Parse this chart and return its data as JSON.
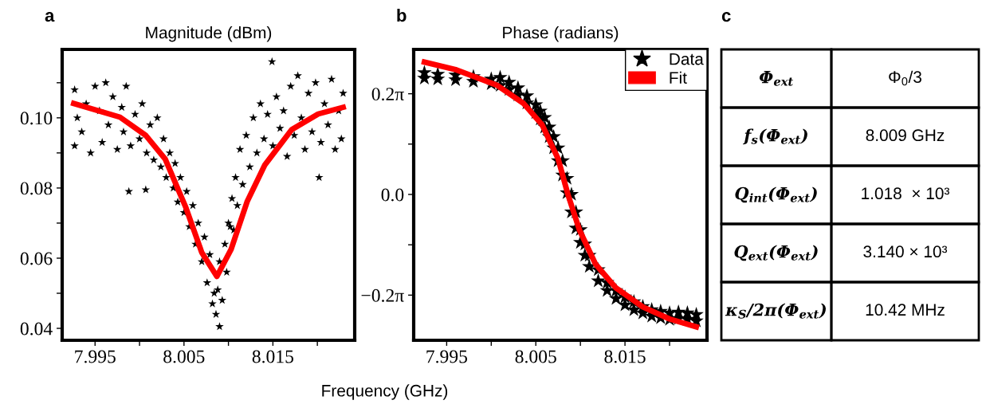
{
  "chart_data": [
    {
      "type": "scatter",
      "title": "Magnitude (dBm)",
      "xlabel": "Frequency (GHz)",
      "annotations": [
        "a"
      ],
      "xlim": [
        7.9913,
        8.0242
      ],
      "xticks": [
        7.995,
        {
          "value": 8.0,
          "label": null
        },
        8.005,
        {
          "value": 8.01,
          "label": null
        },
        8.015,
        {
          "value": 8.02,
          "label": null
        }
      ],
      "ylim": [
        0.0366,
        0.1195
      ],
      "yticks": [
        {
          "value": 0.04,
          "label": "0.04"
        },
        {
          "value": 0.05,
          "label": null
        },
        {
          "value": 0.06,
          "label": "0.06"
        },
        {
          "value": 0.07,
          "label": null
        },
        {
          "value": 0.08,
          "label": "0.08"
        },
        {
          "value": 0.09,
          "label": null
        },
        {
          "value": 0.1,
          "label": "0.10"
        },
        {
          "value": 0.11,
          "label": null
        }
      ],
      "grid": false,
      "legend": false,
      "series": [
        {
          "type": "scatter",
          "marker": "star",
          "color": "#000000",
          "x": [
            7.9927,
            7.9927,
            7.993,
            7.9935,
            7.994,
            7.9945,
            7.995,
            7.9955,
            7.9958,
            7.9962,
            7.9965,
            7.997,
            7.9975,
            7.998,
            7.9982,
            7.9985,
            7.9988,
            7.999,
            7.9995,
            8.0,
            8.0003,
            8.0007,
            8.0008,
            8.0012,
            8.0016,
            8.002,
            8.0024,
            8.0027,
            8.003,
            8.0034,
            8.0038,
            8.004,
            8.0043,
            8.0046,
            8.005,
            8.0053,
            8.0056,
            8.006,
            8.0063,
            8.0066,
            8.007,
            8.0073,
            8.0076,
            8.0079,
            8.0082,
            8.0084,
            8.0086,
            8.0088,
            8.009,
            8.009,
            8.0093,
            8.0096,
            8.0098,
            8.01,
            8.0102,
            8.0104,
            8.0106,
            8.0108,
            8.011,
            8.0113,
            8.0116,
            8.012,
            8.0124,
            8.0128,
            8.0132,
            8.0136,
            8.014,
            8.0144,
            8.0149,
            8.015,
            8.0154,
            8.0158,
            8.0162,
            8.0166,
            8.017,
            8.0174,
            8.0178,
            8.0182,
            8.0186,
            8.019,
            8.0194,
            8.0198,
            8.0202,
            8.0204,
            8.0208,
            8.0212,
            8.0216,
            8.022,
            8.0224,
            8.0227,
            8.0229
          ],
          "values": [
            0.108,
            0.092,
            0.1,
            0.096,
            0.104,
            0.09,
            0.109,
            0.102,
            0.093,
            0.11,
            0.098,
            0.106,
            0.091,
            0.103,
            0.096,
            0.109,
            0.079,
            0.092,
            0.101,
            0.094,
            0.104,
            0.0795,
            0.09,
            0.098,
            0.088,
            0.1,
            0.086,
            0.094,
            0.083,
            0.09,
            0.08,
            0.087,
            0.076,
            0.083,
            0.073,
            0.079,
            0.069,
            0.075,
            0.064,
            0.07,
            0.059,
            0.066,
            0.053,
            0.061,
            0.047,
            0.05,
            0.044,
            0.051,
            0.0405,
            0.059,
            0.048,
            0.064,
            0.056,
            0.07,
            0.069,
            0.077,
            0.068,
            0.083,
            0.075,
            0.091,
            0.081,
            0.095,
            0.086,
            0.1,
            0.09,
            0.104,
            0.094,
            0.101,
            0.116,
            0.092,
            0.106,
            0.097,
            0.102,
            0.089,
            0.109,
            0.095,
            0.112,
            0.1,
            0.091,
            0.107,
            0.096,
            0.11,
            0.083,
            0.093,
            0.104,
            0.098,
            0.111,
            0.091,
            0.102,
            0.094,
            0.107
          ]
        },
        {
          "type": "line",
          "color": "#ff0000",
          "x": [
            7.9926,
            7.9978,
            8.0007,
            8.0029,
            8.0052,
            8.007,
            8.0087,
            8.0103,
            8.0121,
            8.0141,
            8.0171,
            8.0201,
            8.0229
          ],
          "values": [
            0.1041,
            0.1002,
            0.095,
            0.0882,
            0.0745,
            0.0616,
            0.0548,
            0.0625,
            0.0761,
            0.0866,
            0.0966,
            0.1011,
            0.103
          ]
        }
      ]
    },
    {
      "type": "scatter",
      "title": "Phase (radians)",
      "annotations": [
        "b"
      ],
      "xlim": [
        7.9913,
        8.0242
      ],
      "xticks": [
        7.995,
        {
          "value": 8.0,
          "label": null
        },
        8.005,
        {
          "value": 8.01,
          "label": null
        },
        8.015,
        {
          "value": 8.02,
          "label": null
        }
      ],
      "ylim": [
        -0.91,
        0.905
      ],
      "yticks": [
        {
          "value": -0.6283,
          "label": "−0.2π"
        },
        {
          "value": -0.3142,
          "label": null
        },
        {
          "value": 0.0,
          "label": "0.0"
        },
        {
          "value": 0.3142,
          "label": null
        },
        {
          "value": 0.6283,
          "label": "0.2π"
        }
      ],
      "grid": false,
      "legend": "top right",
      "series": [
        {
          "name": "Data",
          "type": "scatter",
          "marker": "star",
          "color": "#000000",
          "x": [
            7.9925,
            7.9925,
            7.994,
            7.994,
            7.996,
            7.996,
            7.998,
            7.998,
            8.0,
            8.0,
            8.001,
            8.001,
            8.002,
            8.002,
            8.003,
            8.003,
            8.004,
            8.004,
            8.005,
            8.005,
            8.0055,
            8.0055,
            8.006,
            8.006,
            8.0065,
            8.0065,
            8.007,
            8.007,
            8.0075,
            8.0075,
            8.008,
            8.008,
            8.0085,
            8.0085,
            8.009,
            8.009,
            8.0095,
            8.0095,
            8.01,
            8.01,
            8.0105,
            8.0105,
            8.011,
            8.011,
            8.012,
            8.012,
            8.013,
            8.013,
            8.014,
            8.014,
            8.015,
            8.015,
            8.016,
            8.016,
            8.017,
            8.017,
            8.018,
            8.018,
            8.019,
            8.019,
            8.02,
            8.02,
            8.021,
            8.021,
            8.022,
            8.022,
            8.023,
            8.023
          ],
          "values": [
            0.76,
            0.725,
            0.75,
            0.72,
            0.745,
            0.715,
            0.735,
            0.705,
            0.72,
            0.69,
            0.73,
            0.68,
            0.7,
            0.655,
            0.665,
            0.62,
            0.615,
            0.57,
            0.56,
            0.51,
            0.52,
            0.47,
            0.48,
            0.42,
            0.42,
            0.36,
            0.36,
            0.29,
            0.29,
            0.21,
            0.21,
            0.12,
            0.1,
            0.01,
            0.0,
            -0.11,
            -0.11,
            -0.21,
            -0.22,
            -0.3,
            -0.31,
            -0.38,
            -0.38,
            -0.45,
            -0.47,
            -0.54,
            -0.55,
            -0.6,
            -0.6,
            -0.65,
            -0.64,
            -0.69,
            -0.67,
            -0.72,
            -0.7,
            -0.74,
            -0.72,
            -0.76,
            -0.73,
            -0.77,
            -0.74,
            -0.78,
            -0.735,
            -0.775,
            -0.74,
            -0.78,
            -0.75,
            -0.79
          ]
        },
        {
          "name": "Fit",
          "type": "line",
          "color": "#ff0000",
          "x": [
            7.9925,
            7.9961,
            8.0006,
            8.0036,
            8.0057,
            8.0075,
            8.0086,
            8.0099,
            8.0117,
            8.014,
            8.017,
            8.02,
            8.023
          ],
          "values": [
            0.826,
            0.777,
            0.683,
            0.569,
            0.435,
            0.223,
            0.0,
            -0.223,
            -0.435,
            -0.584,
            -0.702,
            -0.777,
            -0.826
          ]
        }
      ]
    },
    {
      "type": "other",
      "annotations": [
        "c",
        "Φ$_{ext}$",
        "Φ$_{0}$/3",
        "f$_{s}$(Φ$_{ext}$)",
        "8.009 GHz",
        "Q$_{int}$(Φ$_{ext}$)",
        "1.018  × 10³",
        "Q$_{ext}$(Φ$_{ext}$)",
        "3.140 × 10³",
        "κ$_{S}$/2π(Φ$_{ext}$)",
        "10.42 MHz"
      ]
    }
  ]
}
